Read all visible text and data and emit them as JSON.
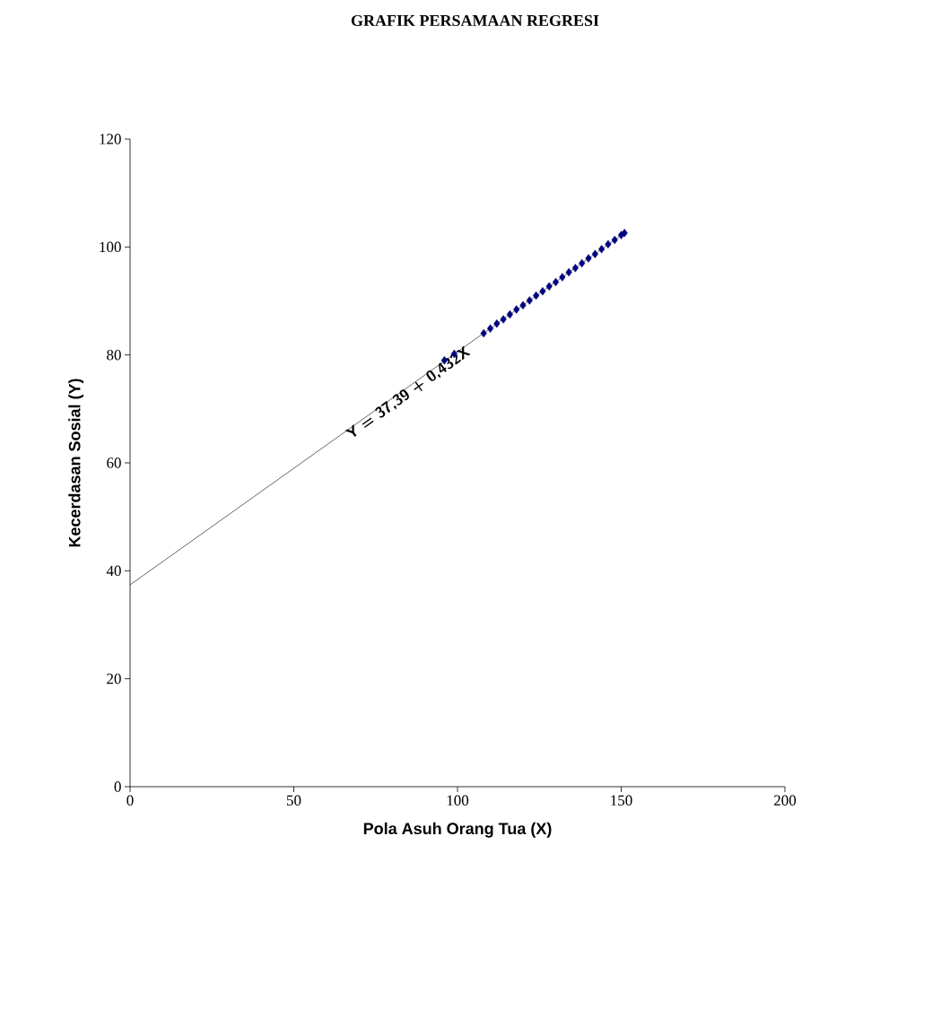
{
  "chart_data": {
    "type": "scatter",
    "title": "GRAFIK PERSAMAAN REGRESI",
    "xlabel": "Pola Asuh Orang Tua (X)",
    "ylabel": "Kecerdasan Sosial (Y)",
    "xlim": [
      0,
      200
    ],
    "ylim": [
      0,
      120
    ],
    "xticks": [
      0,
      50,
      100,
      150,
      200
    ],
    "yticks": [
      0,
      20,
      40,
      60,
      80,
      100,
      120
    ],
    "marker": "diamond",
    "series": [
      {
        "color": "#000080",
        "x": [
          96,
          99,
          108,
          110,
          112,
          114,
          116,
          118,
          120,
          122,
          124,
          126,
          128,
          130,
          132,
          134,
          136,
          138,
          140,
          142,
          144,
          146,
          148,
          150,
          151
        ],
        "values": [
          79.0,
          80.2,
          84.0,
          84.9,
          85.8,
          86.6,
          87.5,
          88.4,
          89.2,
          90.1,
          91.0,
          91.8,
          92.7,
          93.5,
          94.4,
          95.3,
          96.1,
          97.0,
          97.9,
          98.7,
          99.6,
          100.5,
          101.3,
          102.2,
          102.6
        ]
      },
      {
        "type": "line",
        "marker": "none",
        "color": "#000000",
        "x": [
          0,
          151
        ],
        "values": [
          37.4,
          102.6
        ]
      }
    ],
    "annotations": [
      "Y = 37,39 + 0,432X"
    ]
  }
}
